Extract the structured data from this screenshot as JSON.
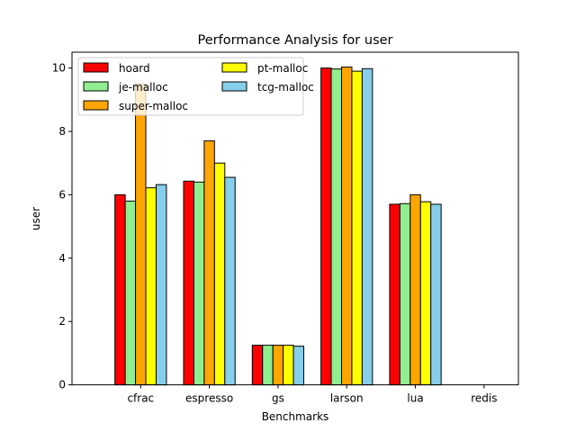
{
  "chart_data": {
    "type": "bar",
    "title": "Performance Analysis for user",
    "xlabel": "Benchmarks",
    "ylabel": "user",
    "ylim": [
      0,
      10.5
    ],
    "yticks": [
      0,
      2,
      4,
      6,
      8,
      10
    ],
    "grid": false,
    "legend_placement": "top-left",
    "legend_columns": 2,
    "categories": [
      "cfrac",
      "espresso",
      "gs",
      "larson",
      "lua",
      "redis"
    ],
    "series": [
      {
        "name": "hoard",
        "color": "#ff0000",
        "values": [
          6.0,
          6.43,
          1.25,
          10.0,
          5.7,
          0.0
        ]
      },
      {
        "name": "je-malloc",
        "color": "#90ee90",
        "values": [
          5.8,
          6.4,
          1.25,
          9.97,
          5.72,
          0.0
        ]
      },
      {
        "name": "super-malloc",
        "color": "#ffa500",
        "values": [
          9.5,
          7.7,
          1.25,
          10.03,
          6.0,
          0.0
        ]
      },
      {
        "name": "pt-malloc",
        "color": "#ffff00",
        "values": [
          6.22,
          7.0,
          1.25,
          9.9,
          5.78,
          0.0
        ]
      },
      {
        "name": "tcg-malloc",
        "color": "#87ceeb",
        "values": [
          6.32,
          6.55,
          1.22,
          9.98,
          5.7,
          0.0
        ]
      }
    ]
  }
}
